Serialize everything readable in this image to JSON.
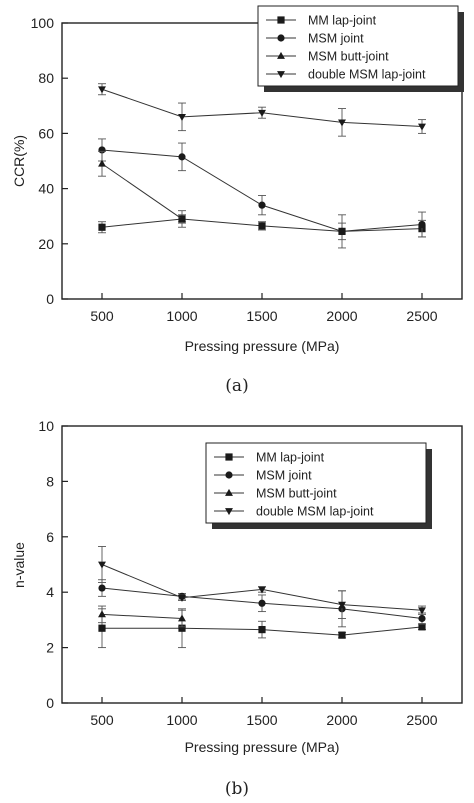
{
  "chart_data": [
    {
      "type": "scatter",
      "panel_caption": "(a)",
      "title": "",
      "xlabel": "Pressing pressure (MPa)",
      "ylabel": "CCR(%)",
      "xlim": [
        250,
        2750
      ],
      "ylim": [
        0,
        100
      ],
      "xticks": [
        500,
        1000,
        1500,
        2000,
        2500
      ],
      "yticks": [
        0,
        20,
        40,
        60,
        80,
        100
      ],
      "grid": false,
      "legend_position": "top-right",
      "x": [
        500,
        1000,
        1500,
        2000,
        2500
      ],
      "series": [
        {
          "name": "MM lap-joint",
          "marker": "square",
          "values": [
            26,
            29,
            26.5,
            24.5,
            25.5
          ],
          "errors": [
            2,
            1.5,
            1.5,
            3,
            3
          ]
        },
        {
          "name": "MSM joint",
          "marker": "circle",
          "values": [
            54,
            51.5,
            34,
            24.5,
            27
          ],
          "errors": [
            4,
            5,
            3.5,
            6,
            4.5
          ]
        },
        {
          "name": "MSM butt-joint",
          "marker": "triangle-up",
          "values": [
            49,
            29,
            null,
            null,
            null
          ],
          "errors": [
            4.5,
            3,
            null,
            null,
            null
          ]
        },
        {
          "name": "double MSM lap-joint",
          "marker": "triangle-down",
          "values": [
            76,
            66,
            67.5,
            64,
            62.5
          ],
          "errors": [
            2,
            5,
            2,
            5,
            2.5
          ]
        }
      ]
    },
    {
      "type": "scatter",
      "panel_caption": "(b)",
      "title": "",
      "xlabel": "Pressing pressure (MPa)",
      "ylabel": "n-value",
      "xlim": [
        250,
        2750
      ],
      "ylim": [
        0,
        10
      ],
      "xticks": [
        500,
        1000,
        1500,
        2000,
        2500
      ],
      "yticks": [
        0,
        2,
        4,
        6,
        8,
        10
      ],
      "grid": false,
      "legend_position": "top-right",
      "x": [
        500,
        1000,
        1500,
        2000,
        2500
      ],
      "series": [
        {
          "name": "MM lap-joint",
          "marker": "square",
          "values": [
            2.7,
            2.7,
            2.65,
            2.45,
            2.75
          ],
          "errors": [
            0.7,
            0.7,
            0.3,
            0.1,
            0.1
          ]
        },
        {
          "name": "MSM joint",
          "marker": "circle",
          "values": [
            4.15,
            3.85,
            3.6,
            3.4,
            3.05
          ],
          "errors": [
            0.3,
            0.1,
            0.3,
            0.65,
            0.2
          ]
        },
        {
          "name": "MSM butt-joint",
          "marker": "triangle-up",
          "values": [
            3.2,
            3.05,
            null,
            null,
            null
          ],
          "errors": [
            0.3,
            0.3,
            null,
            null,
            null
          ]
        },
        {
          "name": "double MSM lap-joint",
          "marker": "triangle-down",
          "values": [
            5,
            3.8,
            4.1,
            3.55,
            3.35
          ],
          "errors": [
            0.65,
            0.1,
            0.1,
            0.5,
            0.15
          ]
        }
      ]
    }
  ]
}
